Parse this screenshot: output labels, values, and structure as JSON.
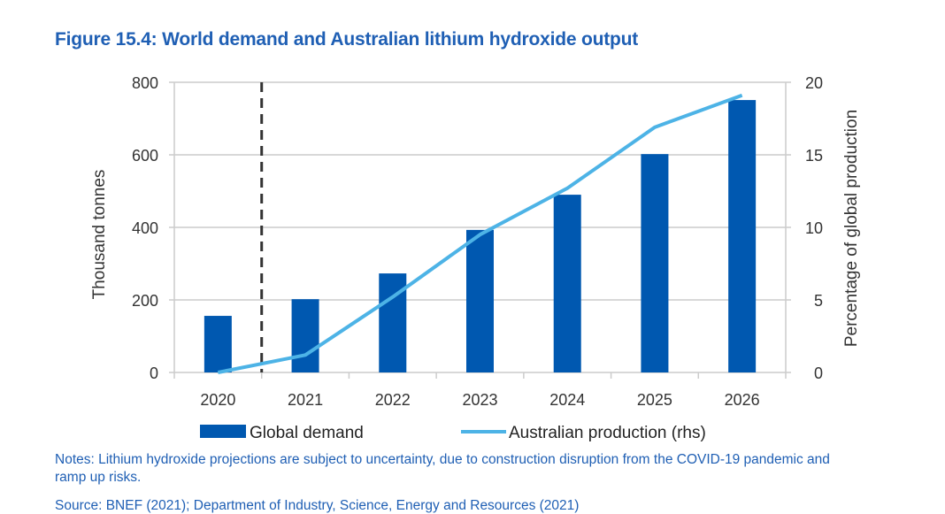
{
  "figure": {
    "title": "Figure 15.4: World demand and Australian lithium hydroxide output",
    "notes": "Notes: Lithium hydroxide projections are subject to uncertainty, due to construction disruption from the COVID-19 pandemic and ramp up risks.",
    "source": "Source: BNEF (2021); Department of Industry, Science, Energy and Resources (2021)"
  },
  "colors": {
    "bar": "#0058b0",
    "line": "#4db3e6",
    "grid": "#cccccc",
    "divider": "#333333",
    "title": "#1f5fb4"
  },
  "chart_data": {
    "type": "bar",
    "title": "Figure 15.4: World demand and Australian lithium hydroxide output",
    "categories": [
      "2020",
      "2021",
      "2022",
      "2023",
      "2024",
      "2025",
      "2026"
    ],
    "series": [
      {
        "name": "Global demand",
        "type": "bar",
        "axis": "left",
        "values": [
          156,
          202,
          273,
          393,
          490,
          602,
          751
        ]
      },
      {
        "name": "Australian production (rhs)",
        "type": "line",
        "axis": "right",
        "values": [
          0,
          1.2,
          5.2,
          9.5,
          12.7,
          16.9,
          19.1
        ]
      }
    ],
    "ylabel": "Thousand tonnes",
    "ylim": [
      0,
      800
    ],
    "yticks": [
      "0",
      "200",
      "400",
      "600",
      "800"
    ],
    "y2label": "Percentage of global production",
    "y2lim": [
      0,
      20
    ],
    "y2ticks": [
      "0",
      "5",
      "10",
      "15",
      "20"
    ],
    "xlabel": "",
    "grid": true,
    "legend": "bottom",
    "annotations": [
      "dashed vertical divider between 2020 and 2021"
    ]
  }
}
